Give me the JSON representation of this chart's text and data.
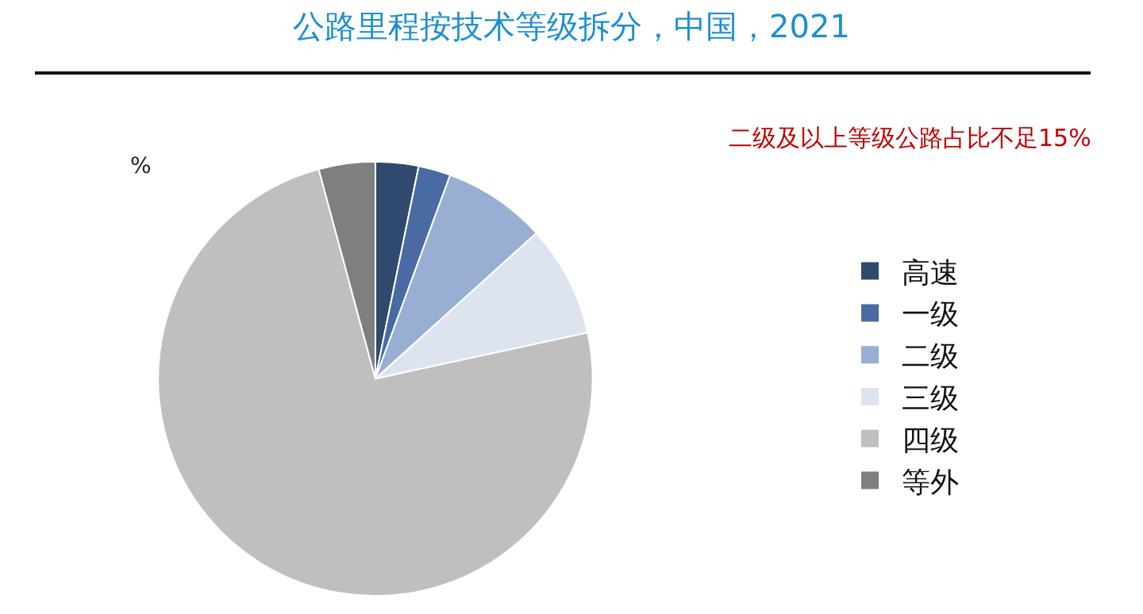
{
  "chart_data": {
    "type": "pie",
    "title": "公路里程按技术等级拆分，中国，2021",
    "categories": [
      "高速",
      "一级",
      "二级",
      "三级",
      "四级",
      "等外"
    ],
    "values": [
      3.2,
      2.4,
      7.7,
      8.3,
      74.2,
      4.2
    ],
    "colors": [
      "#2f4a6e",
      "#4a6aa3",
      "#98aed2",
      "#dde4ef",
      "#bfbfbf",
      "#7f7f7f"
    ],
    "annotations": [
      "二级及以上等级公路占比不足15%",
      "%"
    ],
    "legend": "right"
  }
}
